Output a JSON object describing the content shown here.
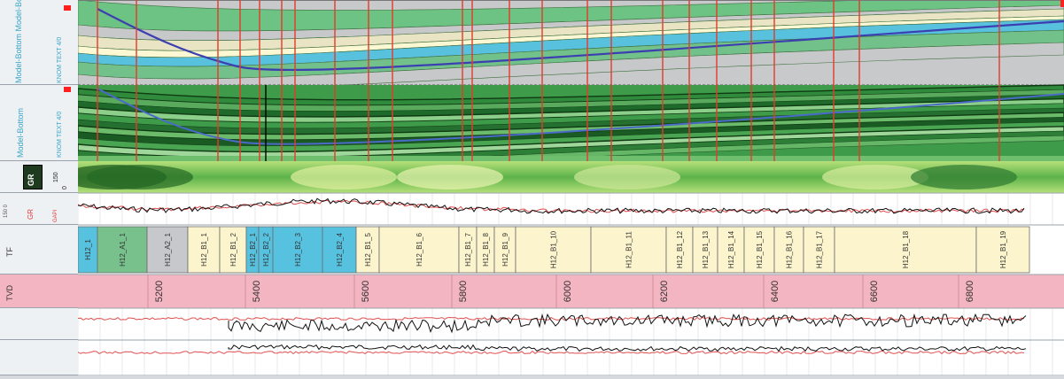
{
  "colors": {
    "model_blue": "#6fcde4",
    "facies_green": "#3f9b4a",
    "accent_red": "#ff2a2a",
    "depth_track_pink": "#f4b5c2",
    "zone_cream": "#fbf4cd",
    "zone_cyan": "#57c2df",
    "zone_grey": "#c6c8cb",
    "zone_green": "#78c08c"
  },
  "tracks": {
    "model_top": {
      "label": "Model-Bottom Model-Bottom",
      "scale_label": "KNOM TEXT 4/0"
    },
    "model_bottom": {
      "label": "Model-Bottom",
      "scale_label": "KNOM TEXT 4/0"
    },
    "gr_image": {
      "curve_name": "GR",
      "scale_max": "150",
      "scale_min": "0"
    },
    "gr_curve": {
      "curve_name": "GR",
      "unit": "GAPI",
      "scale_label": "150 0"
    },
    "zones": {
      "label": "TF"
    },
    "depth": {
      "label": "TVD"
    }
  },
  "zones": [
    {
      "name": "H12_1",
      "color": "zone_cyan"
    },
    {
      "name": "H12_A1_1",
      "color": "zone_green"
    },
    {
      "name": "H12_A2_1",
      "color": "zone_grey"
    },
    {
      "name": "H12_B1_1",
      "color": "zone_cream"
    },
    {
      "name": "H12_B1_2",
      "color": "zone_cream"
    },
    {
      "name": "H12_B2_1",
      "color": "zone_cyan"
    },
    {
      "name": "H12_B2_2",
      "color": "zone_cyan"
    },
    {
      "name": "H12_B2_3",
      "color": "zone_cyan"
    },
    {
      "name": "H12_B2_4",
      "color": "zone_cyan"
    },
    {
      "name": "H12_B1_5",
      "color": "zone_cream"
    },
    {
      "name": "H12_B1_6",
      "color": "zone_cream"
    },
    {
      "name": "H12_B1_7",
      "color": "zone_cream"
    },
    {
      "name": "H12_B1_8",
      "color": "zone_cream"
    },
    {
      "name": "H12_B1_9",
      "color": "zone_cream"
    },
    {
      "name": "H12_B1_10",
      "color": "zone_cream"
    },
    {
      "name": "H12_B1_11",
      "color": "zone_cream"
    },
    {
      "name": "H12_B1_12",
      "color": "zone_cream"
    },
    {
      "name": "H12_B1_13",
      "color": "zone_cream"
    },
    {
      "name": "H12_B1_14",
      "color": "zone_cream"
    },
    {
      "name": "H12_B1_15",
      "color": "zone_cream"
    },
    {
      "name": "H12_B1_16",
      "color": "zone_cream"
    },
    {
      "name": "H12_B1_17",
      "color": "zone_cream"
    },
    {
      "name": "H12_B1_18",
      "color": "zone_cream"
    },
    {
      "name": "H12_B1_19",
      "color": "zone_cream"
    }
  ],
  "depth_ticks": [
    "5200",
    "5400",
    "5600",
    "5800",
    "6000",
    "6200",
    "6400",
    "6600",
    "6800"
  ]
}
